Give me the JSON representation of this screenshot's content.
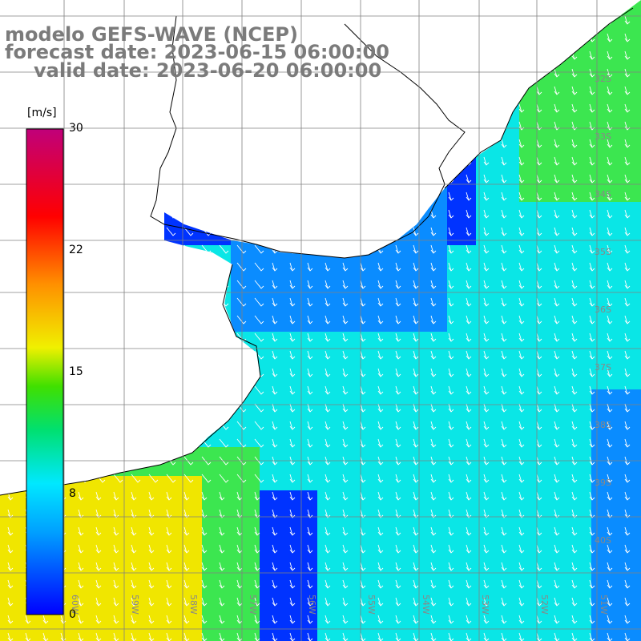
{
  "title": {
    "line1": "modelo GEFS-WAVE (NCEP)",
    "line2": "forecast date: 2023-06-15 06:00:00",
    "line3": "valid date: 2023-06-20 06:00:00"
  },
  "colorbar": {
    "unit": "[m/s]",
    "ticks": [
      "30",
      "22",
      "15",
      "8",
      "0"
    ],
    "tick_values": [
      30,
      22,
      15,
      8,
      0
    ],
    "range": [
      0,
      30
    ]
  },
  "lat_labels": [
    "32S",
    "33S",
    "34S",
    "35S",
    "36S",
    "37S",
    "38S",
    "39S",
    "40S"
  ],
  "lon_labels": [
    "60W",
    "59W",
    "58W",
    "57W",
    "56W",
    "55W",
    "54W",
    "53W",
    "52W",
    "51W"
  ],
  "field": {
    "variable": "wind speed",
    "arrow_direction": "toward south",
    "colors": {
      "blue": "#0033ff",
      "mid_blue": "#0a8cff",
      "cyan": "#0ae6e6",
      "green": "#3ce650",
      "yellow": "#f0e600"
    }
  }
}
